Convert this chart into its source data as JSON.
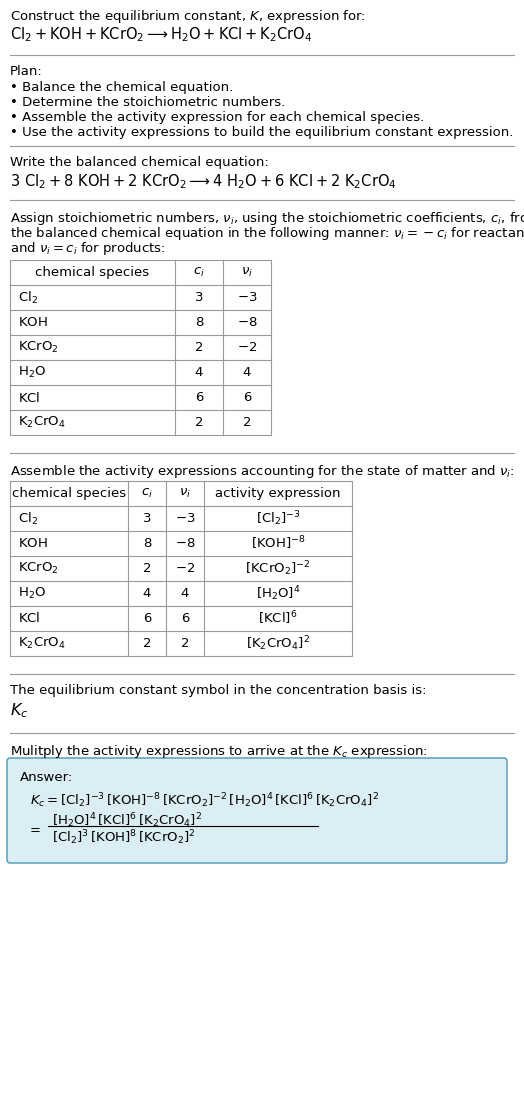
{
  "title_line1": "Construct the equilibrium constant, $K$, expression for:",
  "title_line2": "$\\mathrm{Cl_2 + KOH + KCrO_2 \\longrightarrow H_2O + KCl + K_2CrO_4}$",
  "plan_header": "Plan:",
  "plan_items": [
    "• Balance the chemical equation.",
    "• Determine the stoichiometric numbers.",
    "• Assemble the activity expression for each chemical species.",
    "• Use the activity expressions to build the equilibrium constant expression."
  ],
  "balanced_header": "Write the balanced chemical equation:",
  "balanced_eq": "$\\mathrm{3\\ Cl_2 + 8\\ KOH + 2\\ KCrO_2 \\longrightarrow 4\\ H_2O + 6\\ KCl + 2\\ K_2CrO_4}$",
  "stoich_header_lines": [
    "Assign stoichiometric numbers, $\\nu_i$, using the stoichiometric coefficients, $c_i$, from",
    "the balanced chemical equation in the following manner: $\\nu_i = -c_i$ for reactants",
    "and $\\nu_i = c_i$ for products:"
  ],
  "table1_headers": [
    "chemical species",
    "$c_i$",
    "$\\nu_i$"
  ],
  "table1_rows": [
    [
      "$\\mathrm{Cl_2}$",
      "3",
      "$-3$"
    ],
    [
      "$\\mathrm{KOH}$",
      "8",
      "$-8$"
    ],
    [
      "$\\mathrm{KCrO_2}$",
      "2",
      "$-2$"
    ],
    [
      "$\\mathrm{H_2O}$",
      "4",
      "4"
    ],
    [
      "$\\mathrm{KCl}$",
      "6",
      "6"
    ],
    [
      "$\\mathrm{K_2CrO_4}$",
      "2",
      "2"
    ]
  ],
  "activity_header": "Assemble the activity expressions accounting for the state of matter and $\\nu_i$:",
  "table2_headers": [
    "chemical species",
    "$c_i$",
    "$\\nu_i$",
    "activity expression"
  ],
  "table2_rows": [
    [
      "$\\mathrm{Cl_2}$",
      "3",
      "$-3$",
      "$[\\mathrm{Cl_2}]^{-3}$"
    ],
    [
      "$\\mathrm{KOH}$",
      "8",
      "$-8$",
      "$[\\mathrm{KOH}]^{-8}$"
    ],
    [
      "$\\mathrm{KCrO_2}$",
      "2",
      "$-2$",
      "$[\\mathrm{KCrO_2}]^{-2}$"
    ],
    [
      "$\\mathrm{H_2O}$",
      "4",
      "4",
      "$[\\mathrm{H_2O}]^{4}$"
    ],
    [
      "$\\mathrm{KCl}$",
      "6",
      "6",
      "$[\\mathrm{KCl}]^{6}$"
    ],
    [
      "$\\mathrm{K_2CrO_4}$",
      "2",
      "2",
      "$[\\mathrm{K_2CrO_4}]^{2}$"
    ]
  ],
  "kc_header": "The equilibrium constant symbol in the concentration basis is:",
  "kc_symbol": "$K_c$",
  "multiply_header": "Mulitply the activity expressions to arrive at the $K_c$ expression:",
  "answer_label": "Answer:",
  "answer_line1": "$K_c = [\\mathrm{Cl_2}]^{-3}\\,[\\mathrm{KOH}]^{-8}\\,[\\mathrm{KCrO_2}]^{-2}\\,[\\mathrm{H_2O}]^{4}\\,[\\mathrm{KCl}]^{6}\\,[\\mathrm{K_2CrO_4}]^{2}$",
  "answer_num": "$[\\mathrm{H_2O}]^{4}\\,[\\mathrm{KCl}]^{6}\\,[\\mathrm{K_2CrO_4}]^{2}$",
  "answer_den": "$[\\mathrm{Cl_2}]^{3}\\,[\\mathrm{KOH}]^{8}\\,[\\mathrm{KCrO_2}]^{2}$",
  "bg_color": "#ffffff",
  "table_line_color": "#999999",
  "answer_box_color": "#daeef3",
  "answer_box_border": "#4f96b8",
  "text_color": "#000000",
  "font_size": 9.5
}
